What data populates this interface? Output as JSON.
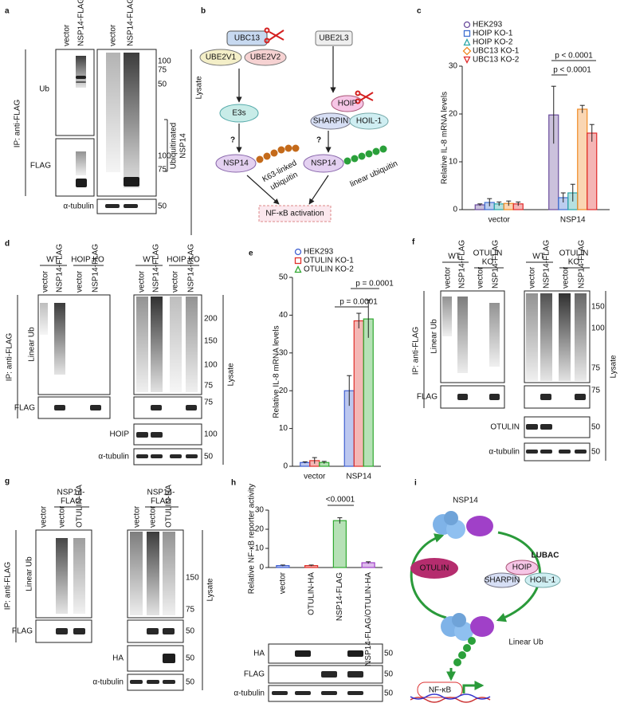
{
  "panels": {
    "a": {
      "label": "a",
      "lanes": [
        "vector",
        "NSP14-FLAG",
        "vector",
        "NSP14-FLAG"
      ],
      "rows": [
        "Ub",
        "FLAG",
        "α-tubulin"
      ],
      "ip": "IP: anti-FLAG",
      "lysate": "Lysate",
      "bracket": [
        "Ubiquitinated",
        "NSP14"
      ],
      "markers": [
        "100",
        "75",
        "50",
        "100",
        "75",
        "50"
      ]
    },
    "b": {
      "label": "b",
      "left": {
        "e2": [
          "UBC13",
          "UBE2V1",
          "UBE2V2"
        ],
        "e3": "E3s",
        "substrate": "NSP14",
        "question": "?",
        "chain": [
          "K63-linked",
          "ubiquitin"
        ]
      },
      "right": {
        "e2": "UBE2L3",
        "lubac": [
          "HOIP",
          "SHARPIN",
          "HOIL-1"
        ],
        "substrate": "NSP14",
        "question": "?",
        "chain": "linear ubiquitin"
      },
      "outcome": "NF-κB activation"
    },
    "d": {
      "label": "d",
      "groups": [
        [
          "WT"
        ],
        [
          "HOIP KO"
        ],
        [
          "WT"
        ],
        [
          "HOIP KO"
        ]
      ],
      "lanes": [
        "vector",
        "NSP14-FLAG",
        "vector",
        "NSP14-FLAG",
        "vector",
        "NSP14-FLAG",
        "vector",
        "NSP14-FLAG"
      ],
      "rows": [
        "Linear Ub",
        "FLAG",
        "HOIP",
        "α-tubulin"
      ],
      "ip": "IP: anti-FLAG",
      "lysate": "Lysate",
      "markers": [
        "200",
        "150",
        "100",
        "75",
        "75",
        "100",
        "50"
      ]
    },
    "f": {
      "label": "f",
      "groups": [
        [
          "WT"
        ],
        [
          "OTULIN",
          "KO"
        ],
        [
          "WT"
        ],
        [
          "OTULIN",
          "KO"
        ]
      ],
      "lanes": [
        "vector",
        "NSP14-FLAG",
        "vector",
        "NSP14-FLAG",
        "vector",
        "NSP14-FLAG",
        "vector",
        "NSP14-FLAG"
      ],
      "rows": [
        "Linear Ub",
        "FLAG",
        "OTULIN",
        "α-tubulin"
      ],
      "ip": "IP: anti-FLAG",
      "lysate": "Lysate",
      "markers": [
        "150",
        "100",
        "75",
        "75",
        "50",
        "50"
      ]
    },
    "g": {
      "label": "g",
      "groups": [
        [
          "NSP14-",
          "FLAG"
        ],
        [
          "NSP14-",
          "FLAG"
        ]
      ],
      "lanes": [
        "vector",
        "vector",
        "OTULIN-HA",
        "vector",
        "vector",
        "OTULIN-HA"
      ],
      "rows": [
        "Linear Ub",
        "FLAG",
        "HA",
        "α-tubulin"
      ],
      "ip": "IP: anti-FLAG",
      "lysate": "Lysate",
      "markers": [
        "150",
        "75",
        "50",
        "50",
        "50"
      ]
    },
    "h": {
      "rows": [
        "HA",
        "FLAG",
        "α-tubulin"
      ],
      "markers": [
        "50",
        "50",
        "50"
      ]
    },
    "i": {
      "label": "i",
      "top": "NSP14",
      "otulin": "OTULIN",
      "lubac": "LUBAC",
      "complex": [
        "HOIP",
        "SHARPIN",
        "HOIL-1"
      ],
      "chain": "Linear Ub",
      "outcome": "NF-κB"
    }
  },
  "chart_data": [
    {
      "type": "bar",
      "panel": "c",
      "ylabel": "Relative IL-8 mRNA levels",
      "categories": [
        "vector",
        "NSP14"
      ],
      "series": [
        {
          "name": "HEK293",
          "color": "#6a4c9c",
          "values": [
            1,
            19.8
          ],
          "errors": [
            0.2,
            6
          ]
        },
        {
          "name": "HOIP KO-1",
          "color": "#3f6fd1",
          "values": [
            1.5,
            2.5
          ],
          "errors": [
            0.8,
            1
          ]
        },
        {
          "name": "HOIP KO-2",
          "color": "#2aa6a6",
          "values": [
            1.2,
            3.5
          ],
          "errors": [
            0.4,
            1.8
          ]
        },
        {
          "name": "UBC13 KO-1",
          "color": "#f08a24",
          "values": [
            1.3,
            21
          ],
          "errors": [
            0.5,
            0.8
          ]
        },
        {
          "name": "UBC13 KO-2",
          "color": "#e02a2a",
          "values": [
            1.2,
            16
          ],
          "errors": [
            0.4,
            1.8
          ]
        }
      ],
      "ylim": [
        0,
        30
      ],
      "yticks": [
        0,
        10,
        20,
        30
      ],
      "annotations": [
        "p < 0.0001",
        "p < 0.0001"
      ]
    },
    {
      "type": "bar",
      "panel": "e",
      "ylabel": "Relative IL-8 mRNA levels",
      "categories": [
        "vector",
        "NSP14"
      ],
      "series": [
        {
          "name": "HEK293",
          "color": "#3f5fd1",
          "values": [
            1,
            20
          ],
          "errors": [
            0.2,
            4
          ]
        },
        {
          "name": "OTULIN KO-1",
          "color": "#e0302a",
          "values": [
            1.5,
            38.5
          ],
          "errors": [
            0.8,
            2
          ]
        },
        {
          "name": "OTULIN KO-2",
          "color": "#2fa82f",
          "values": [
            1,
            39
          ],
          "errors": [
            0.3,
            5
          ]
        }
      ],
      "ylim": [
        0,
        50
      ],
      "yticks": [
        0,
        10,
        20,
        30,
        40,
        50
      ],
      "annotations": [
        "p = 0.0001",
        "p = 0.0001"
      ]
    },
    {
      "type": "bar",
      "panel": "h",
      "ylabel": "Relative NF-κB reporter activity",
      "categories": [
        "vector",
        "OTULIN-HA",
        "NSP14-FLAG",
        "NSP14-FLAG/OTULIN-HA"
      ],
      "values": [
        1,
        1,
        24.5,
        2.5
      ],
      "errors": [
        0.3,
        0.3,
        1.5,
        0.5
      ],
      "colors": [
        "#3f5fd1",
        "#e0302a",
        "#2fa82f",
        "#a040c8"
      ],
      "ylim": [
        0,
        30
      ],
      "yticks": [
        0,
        10,
        20,
        30
      ],
      "annotations": [
        "<0.0001"
      ]
    }
  ]
}
